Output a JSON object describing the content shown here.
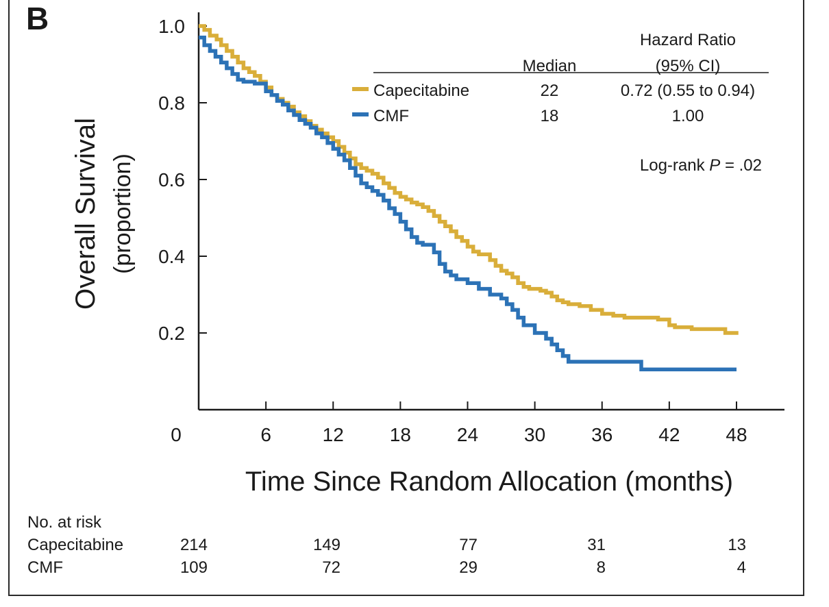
{
  "panel_label": "B",
  "chart_data": {
    "type": "line",
    "step": true,
    "xlabel": "Time Since Random Allocation (months)",
    "ylabel_line1": "Overall Survival",
    "ylabel_line2": "(proportion)",
    "xlim": [
      0,
      52
    ],
    "ylim": [
      0,
      1.0
    ],
    "x_ticks": [
      0,
      6,
      12,
      18,
      24,
      30,
      36,
      42,
      48
    ],
    "x_tick_labels": [
      "0",
      "6",
      "12",
      "18",
      "24",
      "30",
      "36",
      "42",
      "48"
    ],
    "y_ticks": [
      0.2,
      0.4,
      0.6,
      0.8,
      1.0
    ],
    "y_tick_labels": [
      "0.2",
      "0.4",
      "0.6",
      "0.8",
      "1.0"
    ],
    "legend": {
      "placement": "top-right",
      "header_median": "Median",
      "header_hr_line1": "Hazard Ratio",
      "header_hr_line2": "(95% CI)",
      "rows": [
        {
          "name": "Capecitabine",
          "median": "22",
          "hr": "0.72 (0.55 to 0.94)"
        },
        {
          "name": "CMF",
          "median": "18",
          "hr": "1.00"
        }
      ]
    },
    "annotation": {
      "prefix": "Log-rank ",
      "p_symbol": "P",
      "suffix": " = .02"
    },
    "series": [
      {
        "name": "Capecitabine",
        "color": "#D9AE3A",
        "x": [
          0,
          0.5,
          1.0,
          1.6,
          2.0,
          2.5,
          3.0,
          3.5,
          4.0,
          4.5,
          5.0,
          5.5,
          6.0,
          6.5,
          7.0,
          7.5,
          8.0,
          8.5,
          9.0,
          9.5,
          10.0,
          10.5,
          11.0,
          11.5,
          12.0,
          12.5,
          13.0,
          13.5,
          14.0,
          14.5,
          15.0,
          15.5,
          16.0,
          16.5,
          17.0,
          17.5,
          18.0,
          18.5,
          19.0,
          19.5,
          20.0,
          20.5,
          21.0,
          21.5,
          22.0,
          22.5,
          23.0,
          23.5,
          24.0,
          24.5,
          25.0,
          26.0,
          26.5,
          27.0,
          27.5,
          28.0,
          28.5,
          29.0,
          29.5,
          30.0,
          30.5,
          31.0,
          31.5,
          32.0,
          32.5,
          33.0,
          34.0,
          35.0,
          36.0,
          37.0,
          38.0,
          40.0,
          41.0,
          42.0,
          42.5,
          44.0,
          46.0,
          47.0,
          48.0
        ],
        "y": [
          1.0,
          0.99,
          0.975,
          0.965,
          0.95,
          0.935,
          0.92,
          0.905,
          0.89,
          0.88,
          0.87,
          0.855,
          0.84,
          0.82,
          0.81,
          0.8,
          0.79,
          0.775,
          0.765,
          0.752,
          0.74,
          0.73,
          0.72,
          0.71,
          0.7,
          0.685,
          0.67,
          0.655,
          0.64,
          0.63,
          0.623,
          0.615,
          0.605,
          0.59,
          0.578,
          0.565,
          0.555,
          0.548,
          0.54,
          0.535,
          0.528,
          0.518,
          0.505,
          0.49,
          0.478,
          0.465,
          0.45,
          0.44,
          0.425,
          0.412,
          0.405,
          0.39,
          0.375,
          0.362,
          0.355,
          0.345,
          0.33,
          0.32,
          0.315,
          0.315,
          0.31,
          0.305,
          0.295,
          0.285,
          0.28,
          0.275,
          0.27,
          0.26,
          0.25,
          0.245,
          0.24,
          0.24,
          0.235,
          0.22,
          0.215,
          0.21,
          0.21,
          0.2,
          0.195
        ]
      },
      {
        "name": "CMF",
        "color": "#2C72B6",
        "x": [
          0,
          0.5,
          1.0,
          1.5,
          2.0,
          2.5,
          3.0,
          3.5,
          4.0,
          5.0,
          6.0,
          6.5,
          7.0,
          7.5,
          8.0,
          8.5,
          9.0,
          9.5,
          10.0,
          10.5,
          11.0,
          11.5,
          12.0,
          12.5,
          13.0,
          13.5,
          14.0,
          14.5,
          15.0,
          15.5,
          16.0,
          16.5,
          17.0,
          17.5,
          18.0,
          18.5,
          19.0,
          19.5,
          20.0,
          21.0,
          21.5,
          22.0,
          22.5,
          23.0,
          24.0,
          25.0,
          26.0,
          27.0,
          27.5,
          28.0,
          28.5,
          29.0,
          30.0,
          31.0,
          31.5,
          32.0,
          32.5,
          33.0,
          35.0,
          38.0,
          39.5,
          42.0,
          46.0,
          48.0
        ],
        "y": [
          0.97,
          0.95,
          0.935,
          0.92,
          0.905,
          0.89,
          0.875,
          0.86,
          0.855,
          0.85,
          0.83,
          0.82,
          0.805,
          0.795,
          0.78,
          0.768,
          0.755,
          0.745,
          0.735,
          0.72,
          0.71,
          0.695,
          0.68,
          0.665,
          0.65,
          0.63,
          0.61,
          0.59,
          0.58,
          0.57,
          0.56,
          0.545,
          0.525,
          0.51,
          0.49,
          0.47,
          0.45,
          0.435,
          0.43,
          0.41,
          0.38,
          0.36,
          0.35,
          0.34,
          0.33,
          0.315,
          0.3,
          0.29,
          0.275,
          0.26,
          0.24,
          0.22,
          0.2,
          0.185,
          0.17,
          0.155,
          0.14,
          0.125,
          0.125,
          0.125,
          0.105,
          0.105,
          0.105,
          0.105
        ]
      }
    ],
    "risk_table": {
      "title": "No. at risk",
      "times": [
        0,
        12,
        24,
        36,
        48
      ],
      "rows": [
        {
          "name": "Capecitabine",
          "values": [
            "214",
            "149",
            "77",
            "31",
            "13"
          ]
        },
        {
          "name": "CMF",
          "values": [
            "109",
            "72",
            "29",
            "8",
            "4"
          ]
        }
      ]
    }
  }
}
